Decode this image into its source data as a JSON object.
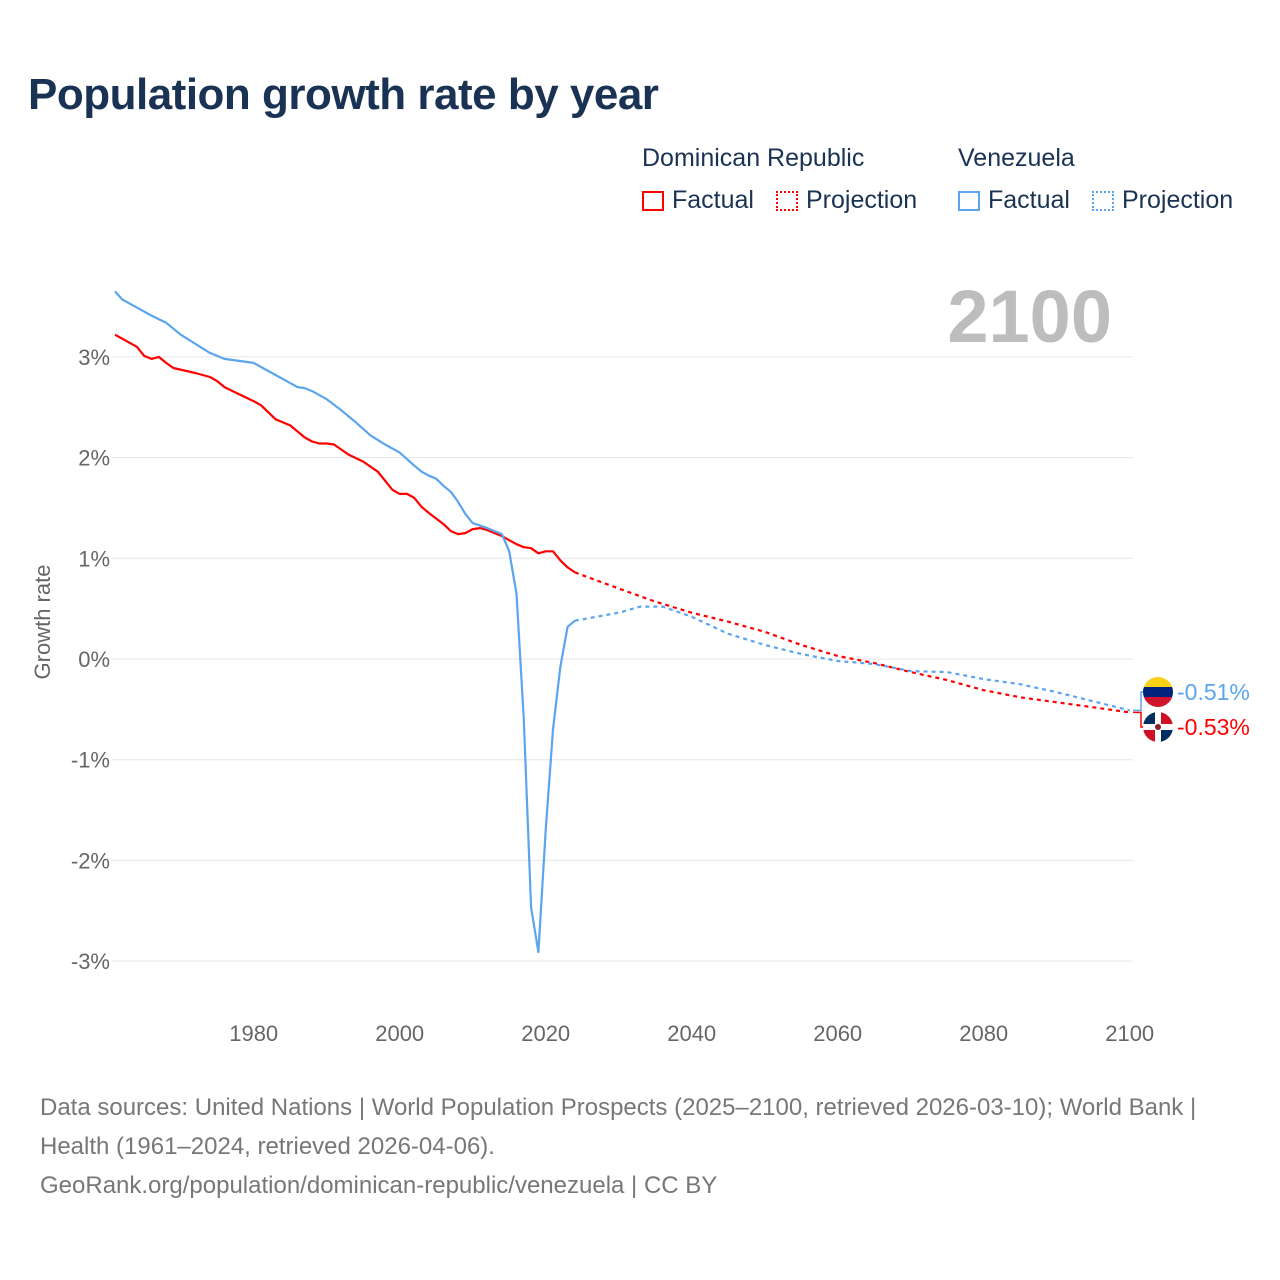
{
  "title": "Population growth rate by year",
  "legend": {
    "groups": [
      {
        "name": "Dominican Republic",
        "color": "#ff0000",
        "factual": "Factual",
        "projection": "Projection"
      },
      {
        "name": "Venezuela",
        "color": "#5aa5ee",
        "factual": "Factual",
        "projection": "Projection"
      }
    ]
  },
  "chart_data": {
    "type": "line",
    "title": "Population growth rate by year",
    "ylabel": "Growth rate",
    "xlabel": "",
    "xlim": [
      1961,
      2100
    ],
    "ylim": [
      -3.5,
      3.8
    ],
    "x_ticks": [
      1980,
      2000,
      2020,
      2040,
      2060,
      2080,
      2100
    ],
    "x_tick_labels": [
      "1980",
      "2000",
      "2020",
      "2040",
      "2060",
      "2080",
      "2100"
    ],
    "y_ticks": [
      3,
      2,
      1,
      0,
      -1,
      -2,
      -3
    ],
    "y_tick_labels": [
      "3%",
      "2%",
      "1%",
      "0%",
      "-1%",
      "-2%",
      "-3%"
    ],
    "grid": true,
    "year_label": "2100",
    "series": [
      {
        "name": "Dominican Republic Factual",
        "color": "#ff0000",
        "style": "solid",
        "x": [
          1961,
          1964,
          1965,
          1966,
          1967,
          1968,
          1969,
          1972,
          1974,
          1975,
          1976,
          1978,
          1980,
          1981,
          1983,
          1985,
          1987,
          1988,
          1989,
          1990,
          1991,
          1993,
          1995,
          1997,
          1999,
          2000,
          2001,
          2002,
          2003,
          2004,
          2006,
          2007,
          2008,
          2009,
          2010,
          2011,
          2012,
          2013,
          2014,
          2015,
          2016,
          2017,
          2018,
          2019,
          2020,
          2021,
          2022,
          2023,
          2024
        ],
        "y": [
          3.22,
          3.1,
          3.01,
          2.98,
          3.0,
          2.94,
          2.89,
          2.84,
          2.8,
          2.76,
          2.7,
          2.63,
          2.56,
          2.52,
          2.38,
          2.32,
          2.2,
          2.16,
          2.14,
          2.14,
          2.13,
          2.03,
          1.96,
          1.86,
          1.68,
          1.64,
          1.64,
          1.6,
          1.51,
          1.45,
          1.34,
          1.27,
          1.24,
          1.25,
          1.29,
          1.3,
          1.28,
          1.25,
          1.22,
          1.18,
          1.14,
          1.11,
          1.1,
          1.05,
          1.07,
          1.07,
          0.98,
          0.91,
          0.86
        ]
      },
      {
        "name": "Dominican Republic Projection",
        "color": "#ff0000",
        "style": "dotted",
        "x": [
          2024,
          2030,
          2035,
          2040,
          2045,
          2050,
          2055,
          2060,
          2065,
          2070,
          2075,
          2080,
          2085,
          2090,
          2095,
          2100
        ],
        "y": [
          0.86,
          0.7,
          0.57,
          0.46,
          0.37,
          0.27,
          0.14,
          0.03,
          -0.04,
          -0.13,
          -0.21,
          -0.31,
          -0.38,
          -0.43,
          -0.48,
          -0.53
        ]
      },
      {
        "name": "Venezuela Factual",
        "color": "#5aa5ee",
        "style": "solid",
        "x": [
          1961,
          1962,
          1964,
          1966,
          1968,
          1970,
          1972,
          1974,
          1976,
          1978,
          1980,
          1981,
          1983,
          1985,
          1986,
          1987,
          1988,
          1990,
          1992,
          1994,
          1996,
          1998,
          2000,
          2002,
          2003,
          2004,
          2005,
          2006,
          2007,
          2008,
          2009,
          2010,
          2012,
          2014,
          2015,
          2016,
          2017,
          2018,
          2019,
          2020,
          2021,
          2022,
          2023,
          2024
        ],
        "y": [
          3.65,
          3.57,
          3.49,
          3.41,
          3.34,
          3.22,
          3.13,
          3.04,
          2.98,
          2.96,
          2.94,
          2.9,
          2.82,
          2.74,
          2.7,
          2.69,
          2.66,
          2.58,
          2.47,
          2.35,
          2.22,
          2.13,
          2.05,
          1.92,
          1.86,
          1.82,
          1.79,
          1.72,
          1.66,
          1.56,
          1.44,
          1.35,
          1.3,
          1.24,
          1.07,
          0.65,
          -0.6,
          -2.47,
          -2.91,
          -1.7,
          -0.7,
          -0.08,
          0.32,
          0.38
        ]
      },
      {
        "name": "Venezuela Projection",
        "color": "#5aa5ee",
        "style": "dotted",
        "x": [
          2024,
          2030,
          2033,
          2036,
          2040,
          2045,
          2050,
          2055,
          2060,
          2065,
          2070,
          2075,
          2080,
          2085,
          2090,
          2095,
          2100
        ],
        "y": [
          0.38,
          0.46,
          0.52,
          0.52,
          0.42,
          0.25,
          0.14,
          0.05,
          -0.02,
          -0.05,
          -0.12,
          -0.13,
          -0.2,
          -0.25,
          -0.33,
          -0.42,
          -0.51
        ]
      }
    ],
    "end_labels": [
      {
        "country": "Venezuela",
        "value": -0.51,
        "text": "-0.51%",
        "color": "#5aa5ee"
      },
      {
        "country": "Dominican Republic",
        "value": -0.53,
        "text": "-0.53%",
        "color": "#ff0000"
      }
    ]
  },
  "footer": {
    "sources": "Data sources: United Nations | World Population Prospects (2025–2100, retrieved 2026-03-10); World Bank | Health (1961–2024, retrieved 2026-04-06).",
    "attribution": "GeoRank.org/population/dominican-republic/venezuela | CC BY"
  }
}
